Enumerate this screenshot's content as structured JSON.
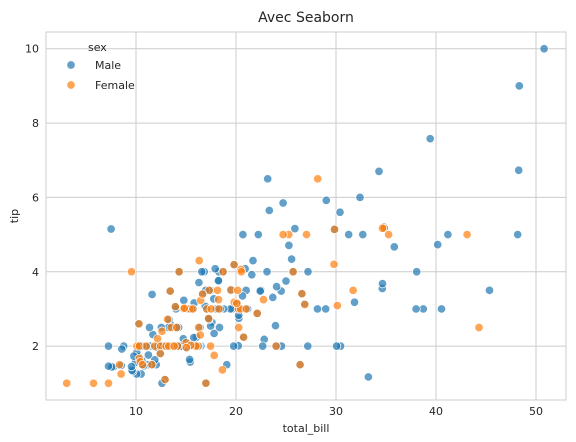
{
  "chart_data": {
    "type": "scatter",
    "title": "Avec Seaborn",
    "xlabel": "total_bill",
    "ylabel": "tip",
    "xlim": [
      1.0,
      53.0
    ],
    "ylim": [
      0.55,
      10.45
    ],
    "xticks": [
      10,
      20,
      30,
      40,
      50
    ],
    "yticks": [
      2,
      4,
      6,
      8,
      10
    ],
    "grid": true,
    "legend": {
      "title": "sex",
      "placement": "top-left"
    },
    "series": [
      {
        "name": "Male",
        "color": "#1f77b4",
        "points": [
          [
            50.81,
            10.0
          ],
          [
            48.33,
            9.0
          ],
          [
            48.27,
            6.73
          ],
          [
            48.17,
            5.0
          ],
          [
            39.42,
            7.58
          ],
          [
            34.3,
            6.7
          ],
          [
            32.4,
            6.0
          ],
          [
            23.17,
            6.5
          ],
          [
            23.33,
            5.65
          ],
          [
            24.71,
            5.85
          ],
          [
            29.03,
            5.92
          ],
          [
            25.89,
            5.16
          ],
          [
            31.27,
            5.0
          ],
          [
            32.68,
            5.0
          ],
          [
            41.19,
            5.0
          ],
          [
            20.69,
            5.0
          ],
          [
            22.23,
            5.0
          ],
          [
            7.51,
            5.15
          ],
          [
            40.17,
            4.73
          ],
          [
            34.81,
            5.2
          ],
          [
            26.86,
            3.14
          ],
          [
            25.56,
            4.34
          ],
          [
            24.52,
            3.48
          ],
          [
            28.97,
            3.0
          ],
          [
            31.85,
            3.18
          ],
          [
            35.83,
            4.67
          ],
          [
            34.63,
            3.55
          ],
          [
            34.65,
            3.68
          ],
          [
            38.07,
            4.0
          ],
          [
            38.73,
            3.0
          ],
          [
            38.01,
            3.0
          ],
          [
            40.55,
            3.0
          ],
          [
            45.35,
            3.5
          ],
          [
            30.4,
            5.6
          ],
          [
            33.24,
            1.17
          ],
          [
            30.46,
            2.0
          ],
          [
            30.06,
            2.0
          ],
          [
            29.85,
            5.14
          ],
          [
            28.15,
            3.0
          ],
          [
            27.2,
            4.0
          ],
          [
            27.18,
            2.0
          ],
          [
            26.59,
            3.41
          ],
          [
            26.41,
            1.5
          ],
          [
            25.71,
            4.0
          ],
          [
            25.29,
            4.71
          ],
          [
            25.0,
            3.75
          ],
          [
            24.55,
            2.0
          ],
          [
            24.06,
            3.6
          ],
          [
            24.01,
            2.0
          ],
          [
            23.95,
            2.55
          ],
          [
            23.68,
            3.31
          ],
          [
            23.1,
            4.0
          ],
          [
            22.82,
            2.18
          ],
          [
            22.67,
            2.0
          ],
          [
            22.49,
            3.5
          ],
          [
            22.42,
            3.48
          ],
          [
            22.12,
            2.88
          ],
          [
            21.7,
            4.3
          ],
          [
            21.58,
            3.92
          ],
          [
            21.16,
            3.0
          ],
          [
            21.01,
            3.5
          ],
          [
            20.92,
            4.08
          ],
          [
            20.76,
            2.24
          ],
          [
            20.65,
            3.35
          ],
          [
            20.45,
            3.0
          ],
          [
            20.29,
            2.75
          ],
          [
            20.27,
            2.83
          ],
          [
            20.23,
            2.01
          ],
          [
            20.08,
            3.15
          ],
          [
            19.81,
            4.19
          ],
          [
            19.77,
            2.0
          ],
          [
            19.65,
            3.0
          ],
          [
            19.49,
            3.51
          ],
          [
            19.44,
            3.0
          ],
          [
            19.08,
            1.5
          ],
          [
            18.78,
            3.0
          ],
          [
            18.71,
            4.0
          ],
          [
            18.43,
            3.0
          ],
          [
            18.35,
            2.5
          ],
          [
            18.29,
            3.76
          ],
          [
            18.28,
            4.0
          ],
          [
            18.24,
            3.76
          ],
          [
            18.04,
            3.0
          ],
          [
            17.92,
            4.08
          ],
          [
            17.81,
            2.34
          ],
          [
            17.78,
            3.27
          ],
          [
            17.59,
            2.64
          ],
          [
            17.47,
            3.5
          ],
          [
            17.46,
            2.54
          ],
          [
            17.31,
            3.5
          ],
          [
            17.29,
            2.71
          ],
          [
            17.26,
            2.74
          ],
          [
            17.07,
            3.0
          ],
          [
            16.99,
            1.01
          ],
          [
            16.97,
            3.5
          ],
          [
            16.93,
            3.07
          ],
          [
            16.82,
            4.0
          ],
          [
            16.66,
            3.4
          ],
          [
            16.58,
            4.0
          ],
          [
            16.49,
            2.0
          ],
          [
            16.4,
            2.5
          ],
          [
            16.31,
            2.0
          ],
          [
            16.29,
            3.71
          ],
          [
            16.21,
            2.0
          ],
          [
            16.04,
            2.24
          ],
          [
            16.0,
            2.0
          ],
          [
            15.98,
            2.03
          ],
          [
            15.81,
            3.16
          ],
          [
            15.77,
            2.23
          ],
          [
            15.69,
            3.0
          ],
          [
            15.53,
            3.0
          ],
          [
            15.48,
            2.02
          ],
          [
            15.42,
            1.57
          ],
          [
            15.36,
            1.64
          ],
          [
            15.06,
            3.0
          ],
          [
            15.04,
            1.96
          ],
          [
            15.01,
            2.09
          ],
          [
            14.78,
            3.23
          ],
          [
            14.73,
            2.2
          ],
          [
            14.52,
            2.0
          ],
          [
            14.48,
            2.0
          ],
          [
            14.31,
            4.0
          ],
          [
            14.26,
            2.5
          ],
          [
            14.15,
            2.0
          ],
          [
            14.07,
            2.5
          ],
          [
            14.0,
            3.0
          ],
          [
            13.94,
            3.06
          ],
          [
            13.81,
            2.0
          ],
          [
            13.51,
            2.0
          ],
          [
            13.42,
            3.48
          ],
          [
            13.39,
            2.61
          ],
          [
            13.28,
            2.72
          ],
          [
            13.27,
            2.5
          ],
          [
            13.13,
            2.0
          ],
          [
            13.03,
            2.0
          ],
          [
            13.0,
            2.0
          ],
          [
            12.9,
            1.1
          ],
          [
            12.74,
            2.01
          ],
          [
            12.69,
            2.0
          ],
          [
            12.6,
            1.0
          ],
          [
            12.54,
            2.5
          ],
          [
            12.43,
            1.8
          ],
          [
            12.26,
            2.0
          ],
          [
            12.03,
            1.5
          ],
          [
            12.02,
            1.97
          ],
          [
            11.87,
            1.63
          ],
          [
            11.69,
            2.31
          ],
          [
            11.61,
            3.39
          ],
          [
            11.59,
            1.5
          ],
          [
            11.38,
            2.0
          ],
          [
            11.35,
            2.5
          ],
          [
            11.24,
            1.76
          ],
          [
            11.17,
            1.5
          ],
          [
            11.02,
            1.98
          ],
          [
            10.77,
            1.47
          ],
          [
            10.65,
            1.5
          ],
          [
            10.63,
            2.0
          ],
          [
            10.59,
            1.61
          ],
          [
            10.51,
            1.25
          ],
          [
            10.34,
            2.0
          ],
          [
            10.33,
            2.0
          ],
          [
            10.29,
            2.6
          ],
          [
            10.27,
            1.71
          ],
          [
            10.07,
            1.83
          ],
          [
            10.07,
            1.25
          ],
          [
            9.94,
            1.56
          ],
          [
            9.78,
            1.73
          ],
          [
            9.68,
            1.32
          ],
          [
            9.6,
            1.35
          ],
          [
            9.55,
            1.45
          ],
          [
            8.77,
            2.0
          ],
          [
            8.58,
            1.92
          ],
          [
            8.52,
            1.48
          ],
          [
            7.74,
            1.44
          ],
          [
            7.56,
            1.44
          ],
          [
            7.25,
            1.46
          ],
          [
            7.25,
            2.0
          ]
        ]
      },
      {
        "name": "Female",
        "color": "#ff7f0e",
        "points": [
          [
            3.07,
            1.0
          ],
          [
            5.75,
            1.0
          ],
          [
            7.25,
            1.0
          ],
          [
            8.35,
            1.5
          ],
          [
            8.51,
            1.25
          ],
          [
            9.55,
            4.0
          ],
          [
            10.09,
            2.0
          ],
          [
            10.33,
            1.67
          ],
          [
            10.34,
            2.0
          ],
          [
            10.42,
            1.58
          ],
          [
            10.65,
            1.5
          ],
          [
            11.02,
            2.0
          ],
          [
            11.87,
            2.0
          ],
          [
            12.16,
            2.2
          ],
          [
            12.46,
            2.0
          ],
          [
            12.6,
            2.4
          ],
          [
            12.9,
            1.1
          ],
          [
            13.0,
            2.0
          ],
          [
            13.16,
            2.72
          ],
          [
            13.28,
            2.0
          ],
          [
            13.42,
            3.48
          ],
          [
            13.51,
            2.5
          ],
          [
            14.07,
            2.5
          ],
          [
            14.15,
            2.0
          ],
          [
            14.31,
            4.0
          ],
          [
            14.78,
            3.0
          ],
          [
            15.38,
            3.0
          ],
          [
            15.69,
            3.0
          ],
          [
            16.27,
            2.5
          ],
          [
            16.32,
            4.3
          ],
          [
            16.43,
            2.3
          ],
          [
            16.47,
            3.23
          ],
          [
            16.99,
            1.0
          ],
          [
            17.07,
            3.0
          ],
          [
            17.31,
            3.5
          ],
          [
            17.51,
            3.0
          ],
          [
            17.82,
            1.75
          ],
          [
            18.15,
            3.5
          ],
          [
            18.26,
            3.25
          ],
          [
            18.29,
            3.0
          ],
          [
            18.64,
            1.36
          ],
          [
            19.49,
            3.51
          ],
          [
            19.82,
            3.18
          ],
          [
            20.17,
            3.5
          ],
          [
            20.23,
            3.0
          ],
          [
            20.27,
            2.5
          ],
          [
            20.49,
            4.06
          ],
          [
            20.53,
            4.0
          ],
          [
            22.75,
            3.25
          ],
          [
            25.28,
            5.0
          ],
          [
            26.88,
            3.12
          ],
          [
            27.05,
            5.0
          ],
          [
            28.17,
            6.5
          ],
          [
            29.85,
            5.14
          ],
          [
            34.83,
            5.17
          ],
          [
            35.26,
            5.0
          ],
          [
            43.11,
            5.0
          ],
          [
            44.3,
            2.5
          ],
          [
            15.01,
            2.09
          ],
          [
            10.29,
            2.6
          ],
          [
            16.21,
            2.0
          ],
          [
            14.83,
            3.02
          ],
          [
            22.12,
            2.88
          ],
          [
            24.71,
            5.0
          ],
          [
            29.8,
            4.2
          ],
          [
            31.71,
            3.5
          ],
          [
            19.81,
            4.19
          ],
          [
            17.46,
            2.0
          ],
          [
            16.0,
            2.0
          ],
          [
            15.48,
            2.02
          ],
          [
            18.71,
            4.0
          ],
          [
            20.45,
            3.0
          ],
          [
            21.01,
            3.0
          ],
          [
            13.94,
            3.06
          ],
          [
            25.71,
            4.0
          ],
          [
            26.41,
            1.5
          ],
          [
            24.01,
            2.0
          ],
          [
            12.43,
            1.8
          ],
          [
            30.14,
            3.09
          ],
          [
            15.04,
            1.96
          ],
          [
            20.08,
            3.15
          ],
          [
            26.59,
            3.41
          ],
          [
            17.26,
            2.74
          ],
          [
            11.59,
            1.5
          ],
          [
            34.65,
            5.17
          ],
          [
            16.66,
            3.4
          ],
          [
            20.76,
            2.24
          ],
          [
            13.81,
            2.0
          ]
        ]
      }
    ]
  }
}
